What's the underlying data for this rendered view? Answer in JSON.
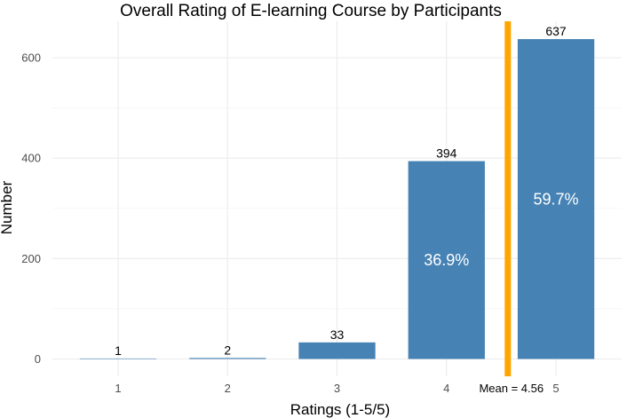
{
  "chart_data": {
    "type": "bar",
    "title": "Overall Rating of E-learning Course by Participants",
    "xlabel": "Ratings (1-5/5)",
    "ylabel": "Number",
    "categories": [
      "1",
      "2",
      "3",
      "4",
      "5"
    ],
    "values": [
      1,
      2,
      33,
      394,
      637
    ],
    "value_labels": [
      "1",
      "2",
      "33",
      "394",
      "637"
    ],
    "percent_labels": [
      "",
      "",
      "",
      "36.9%",
      "59.7%"
    ],
    "yticks": [
      0,
      200,
      400,
      600
    ],
    "ylim": [
      0,
      660
    ],
    "grid": true,
    "mean": {
      "value": 4.56,
      "label": "Mean = 4.56"
    },
    "colors": {
      "bar": "#4682b4",
      "mean_line": "#ffa500"
    }
  }
}
